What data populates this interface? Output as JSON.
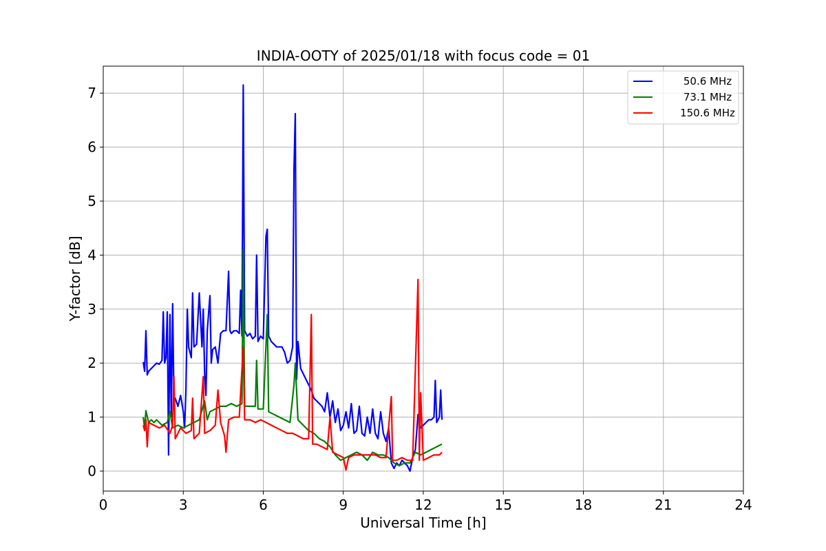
{
  "chart_data": {
    "type": "line",
    "title": "INDIA-OOTY of 2025/01/18 with focus code = 01",
    "xlabel": "Universal Time [h]",
    "ylabel": "Y-factor [dB]",
    "xlim": [
      0,
      24
    ],
    "ylim": [
      -0.37,
      7.5
    ],
    "xticks": [
      0,
      3,
      6,
      9,
      12,
      15,
      18,
      21,
      24
    ],
    "yticks": [
      0,
      1,
      2,
      3,
      4,
      5,
      6,
      7
    ],
    "grid": true,
    "legend_position": "top-right",
    "series": [
      {
        "name": "50.6 MHz",
        "color": "#0000ff",
        "points": [
          [
            1.5,
            2.02
          ],
          [
            1.55,
            1.85
          ],
          [
            1.6,
            2.6
          ],
          [
            1.65,
            1.78
          ],
          [
            1.7,
            1.85
          ],
          [
            1.8,
            1.9
          ],
          [
            1.9,
            1.95
          ],
          [
            2.0,
            2.0
          ],
          [
            2.1,
            1.98
          ],
          [
            2.2,
            2.05
          ],
          [
            2.25,
            2.95
          ],
          [
            2.3,
            2.0
          ],
          [
            2.35,
            2.1
          ],
          [
            2.4,
            2.95
          ],
          [
            2.45,
            0.3
          ],
          [
            2.5,
            2.9
          ],
          [
            2.55,
            1.0
          ],
          [
            2.6,
            3.1
          ],
          [
            2.65,
            1.3
          ],
          [
            2.7,
            1.35
          ],
          [
            2.8,
            1.2
          ],
          [
            2.9,
            1.4
          ],
          [
            3.0,
            1.1
          ],
          [
            3.05,
            0.8
          ],
          [
            3.1,
            1.5
          ],
          [
            3.15,
            3.0
          ],
          [
            3.2,
            2.3
          ],
          [
            3.3,
            2.1
          ],
          [
            3.35,
            3.3
          ],
          [
            3.4,
            2.3
          ],
          [
            3.5,
            2.35
          ],
          [
            3.6,
            3.3
          ],
          [
            3.7,
            2.3
          ],
          [
            3.75,
            3.0
          ],
          [
            3.8,
            1.8
          ],
          [
            3.85,
            1.4
          ],
          [
            3.9,
            2.6
          ],
          [
            4.0,
            3.25
          ],
          [
            4.05,
            2.0
          ],
          [
            4.1,
            2.25
          ],
          [
            4.2,
            2.3
          ],
          [
            4.3,
            2.0
          ],
          [
            4.4,
            2.55
          ],
          [
            4.5,
            2.6
          ],
          [
            4.6,
            2.6
          ],
          [
            4.7,
            3.7
          ],
          [
            4.75,
            2.6
          ],
          [
            4.8,
            2.55
          ],
          [
            4.9,
            2.6
          ],
          [
            5.0,
            2.6
          ],
          [
            5.1,
            2.55
          ],
          [
            5.15,
            3.35
          ],
          [
            5.2,
            2.5
          ],
          [
            5.25,
            7.15
          ],
          [
            5.3,
            2.6
          ],
          [
            5.4,
            2.5
          ],
          [
            5.5,
            2.55
          ],
          [
            5.6,
            2.45
          ],
          [
            5.7,
            2.5
          ],
          [
            5.75,
            4.0
          ],
          [
            5.8,
            2.4
          ],
          [
            5.9,
            2.5
          ],
          [
            6.0,
            2.45
          ],
          [
            6.1,
            4.35
          ],
          [
            6.15,
            4.48
          ],
          [
            6.2,
            2.5
          ],
          [
            6.3,
            2.4
          ],
          [
            6.4,
            2.35
          ],
          [
            6.5,
            2.3
          ],
          [
            6.6,
            2.3
          ],
          [
            6.7,
            2.3
          ],
          [
            6.8,
            2.2
          ],
          [
            6.9,
            2.0
          ],
          [
            7.0,
            2.05
          ],
          [
            7.1,
            2.3
          ],
          [
            7.15,
            5.6
          ],
          [
            7.2,
            6.62
          ],
          [
            7.25,
            1.7
          ],
          [
            7.3,
            2.4
          ],
          [
            7.4,
            1.9
          ],
          [
            7.5,
            1.8
          ],
          [
            7.6,
            1.7
          ],
          [
            7.7,
            1.6
          ],
          [
            7.8,
            1.5
          ],
          [
            7.9,
            1.35
          ],
          [
            8.0,
            1.3
          ],
          [
            8.1,
            1.25
          ],
          [
            8.2,
            1.2
          ],
          [
            8.3,
            1.1
          ],
          [
            8.4,
            1.45
          ],
          [
            8.5,
            1.0
          ],
          [
            8.6,
            1.3
          ],
          [
            8.7,
            0.9
          ],
          [
            8.8,
            1.15
          ],
          [
            8.9,
            0.75
          ],
          [
            9.0,
            0.85
          ],
          [
            9.1,
            1.1
          ],
          [
            9.2,
            0.8
          ],
          [
            9.3,
            1.25
          ],
          [
            9.4,
            0.7
          ],
          [
            9.5,
            0.75
          ],
          [
            9.6,
            1.2
          ],
          [
            9.7,
            0.7
          ],
          [
            9.8,
            0.65
          ],
          [
            9.9,
            1.0
          ],
          [
            10.0,
            0.7
          ],
          [
            10.1,
            1.15
          ],
          [
            10.2,
            0.7
          ],
          [
            10.3,
            0.6
          ],
          [
            10.4,
            1.1
          ],
          [
            10.5,
            0.7
          ],
          [
            10.6,
            0.55
          ],
          [
            10.7,
            0.8
          ],
          [
            10.8,
            0.15
          ],
          [
            10.9,
            0.05
          ],
          [
            11.0,
            0.15
          ],
          [
            11.1,
            0.1
          ],
          [
            11.2,
            0.2
          ],
          [
            11.3,
            0.15
          ],
          [
            11.4,
            0.1
          ],
          [
            11.5,
            0.0
          ],
          [
            11.6,
            0.25
          ],
          [
            11.7,
            0.4
          ],
          [
            11.8,
            1.05
          ],
          [
            11.9,
            0.8
          ],
          [
            12.0,
            0.85
          ],
          [
            12.1,
            0.9
          ],
          [
            12.2,
            0.95
          ],
          [
            12.3,
            0.95
          ],
          [
            12.4,
            1.0
          ],
          [
            12.45,
            1.68
          ],
          [
            12.5,
            0.9
          ],
          [
            12.6,
            1.0
          ],
          [
            12.65,
            1.5
          ],
          [
            12.7,
            0.95
          ]
        ]
      },
      {
        "name": "73.1 MHz",
        "color": "#008000",
        "points": [
          [
            1.5,
            1.0
          ],
          [
            1.55,
            0.8
          ],
          [
            1.6,
            1.12
          ],
          [
            1.7,
            0.9
          ],
          [
            1.8,
            0.95
          ],
          [
            1.9,
            0.9
          ],
          [
            2.0,
            0.95
          ],
          [
            2.2,
            0.85
          ],
          [
            2.4,
            0.9
          ],
          [
            2.5,
            1.1
          ],
          [
            2.6,
            0.8
          ],
          [
            2.8,
            0.85
          ],
          [
            3.0,
            0.8
          ],
          [
            3.2,
            0.85
          ],
          [
            3.4,
            0.9
          ],
          [
            3.6,
            0.95
          ],
          [
            3.8,
            1.3
          ],
          [
            3.9,
            0.95
          ],
          [
            4.0,
            1.1
          ],
          [
            4.2,
            1.15
          ],
          [
            4.4,
            1.2
          ],
          [
            4.6,
            1.2
          ],
          [
            4.8,
            1.25
          ],
          [
            5.0,
            1.2
          ],
          [
            5.2,
            1.25
          ],
          [
            5.25,
            4.1
          ],
          [
            5.3,
            1.2
          ],
          [
            5.5,
            1.2
          ],
          [
            5.7,
            1.2
          ],
          [
            5.75,
            2.05
          ],
          [
            5.8,
            1.15
          ],
          [
            6.0,
            1.15
          ],
          [
            6.15,
            2.9
          ],
          [
            6.2,
            1.1
          ],
          [
            6.4,
            1.05
          ],
          [
            6.6,
            1.0
          ],
          [
            6.8,
            0.95
          ],
          [
            7.0,
            0.9
          ],
          [
            7.15,
            1.6
          ],
          [
            7.2,
            2.0
          ],
          [
            7.3,
            0.95
          ],
          [
            7.5,
            0.85
          ],
          [
            7.7,
            0.75
          ],
          [
            7.9,
            0.7
          ],
          [
            8.1,
            0.6
          ],
          [
            8.3,
            0.55
          ],
          [
            8.5,
            0.45
          ],
          [
            8.7,
            0.3
          ],
          [
            8.9,
            0.2
          ],
          [
            9.1,
            0.25
          ],
          [
            9.3,
            0.3
          ],
          [
            9.5,
            0.35
          ],
          [
            9.7,
            0.3
          ],
          [
            9.9,
            0.2
          ],
          [
            10.1,
            0.35
          ],
          [
            10.3,
            0.3
          ],
          [
            10.5,
            0.3
          ],
          [
            10.7,
            0.25
          ],
          [
            10.9,
            0.15
          ],
          [
            11.1,
            0.1
          ],
          [
            11.3,
            0.15
          ],
          [
            11.5,
            0.15
          ],
          [
            11.7,
            0.35
          ],
          [
            11.9,
            0.3
          ],
          [
            12.1,
            0.35
          ],
          [
            12.3,
            0.4
          ],
          [
            12.5,
            0.45
          ],
          [
            12.7,
            0.5
          ]
        ]
      },
      {
        "name": "150.6 MHz",
        "color": "#ff0000",
        "points": [
          [
            1.5,
            0.85
          ],
          [
            1.55,
            0.75
          ],
          [
            1.6,
            0.95
          ],
          [
            1.65,
            0.45
          ],
          [
            1.7,
            0.9
          ],
          [
            1.9,
            0.85
          ],
          [
            2.1,
            0.8
          ],
          [
            2.3,
            0.85
          ],
          [
            2.5,
            0.7
          ],
          [
            2.6,
            0.85
          ],
          [
            2.65,
            1.75
          ],
          [
            2.7,
            0.6
          ],
          [
            2.9,
            0.8
          ],
          [
            3.1,
            0.7
          ],
          [
            3.3,
            0.75
          ],
          [
            3.35,
            1.35
          ],
          [
            3.4,
            0.6
          ],
          [
            3.6,
            0.7
          ],
          [
            3.75,
            1.75
          ],
          [
            3.8,
            0.7
          ],
          [
            4.0,
            0.75
          ],
          [
            4.2,
            0.85
          ],
          [
            4.3,
            1.5
          ],
          [
            4.4,
            0.9
          ],
          [
            4.55,
            0.65
          ],
          [
            4.6,
            0.35
          ],
          [
            4.7,
            0.95
          ],
          [
            4.9,
            1.0
          ],
          [
            5.1,
            1.0
          ],
          [
            5.25,
            2.3
          ],
          [
            5.3,
            0.95
          ],
          [
            5.5,
            0.95
          ],
          [
            5.7,
            0.9
          ],
          [
            5.9,
            0.95
          ],
          [
            6.1,
            0.9
          ],
          [
            6.3,
            0.85
          ],
          [
            6.5,
            0.8
          ],
          [
            6.7,
            0.75
          ],
          [
            6.9,
            0.7
          ],
          [
            7.1,
            0.7
          ],
          [
            7.3,
            0.65
          ],
          [
            7.5,
            0.6
          ],
          [
            7.7,
            0.6
          ],
          [
            7.8,
            2.9
          ],
          [
            7.85,
            0.5
          ],
          [
            8.0,
            0.5
          ],
          [
            8.2,
            0.45
          ],
          [
            8.4,
            0.4
          ],
          [
            8.5,
            1.0
          ],
          [
            8.6,
            0.35
          ],
          [
            8.8,
            0.3
          ],
          [
            9.0,
            0.25
          ],
          [
            9.1,
            0.02
          ],
          [
            9.2,
            0.25
          ],
          [
            9.4,
            0.3
          ],
          [
            9.6,
            0.3
          ],
          [
            9.8,
            0.3
          ],
          [
            10.0,
            0.3
          ],
          [
            10.2,
            0.3
          ],
          [
            10.4,
            0.25
          ],
          [
            10.6,
            0.25
          ],
          [
            10.8,
            1.38
          ],
          [
            10.85,
            0.2
          ],
          [
            11.0,
            0.2
          ],
          [
            11.2,
            0.25
          ],
          [
            11.4,
            0.2
          ],
          [
            11.6,
            0.2
          ],
          [
            11.8,
            3.55
          ],
          [
            11.85,
            0.2
          ],
          [
            11.9,
            1.45
          ],
          [
            12.0,
            0.2
          ],
          [
            12.2,
            0.25
          ],
          [
            12.4,
            0.3
          ],
          [
            12.6,
            0.3
          ],
          [
            12.7,
            0.35
          ]
        ]
      }
    ]
  }
}
